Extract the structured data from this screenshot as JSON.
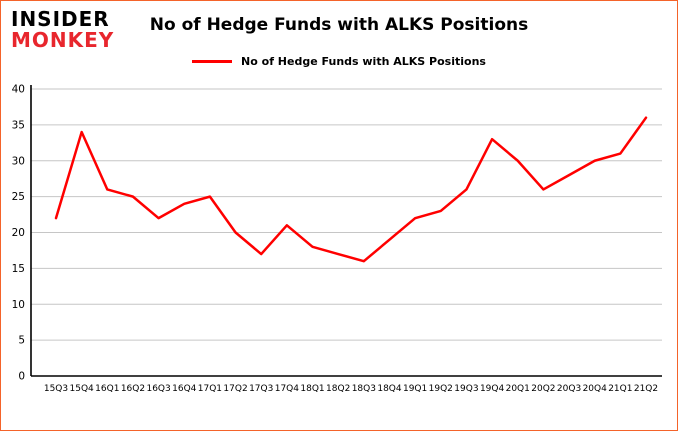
{
  "logo": {
    "line1": "INSIDER",
    "line2": "MONKEY"
  },
  "header": {
    "title": "No of Hedge Funds with ALKS Positions",
    "legend_label": "No of Hedge Funds with ALKS Positions"
  },
  "chart_data": {
    "type": "line",
    "title": "No of Hedge Funds with ALKS Positions",
    "legend": "No of Hedge Funds with ALKS Positions",
    "categories": [
      "15Q3",
      "15Q4",
      "16Q1",
      "16Q2",
      "16Q3",
      "16Q4",
      "17Q1",
      "17Q2",
      "17Q3",
      "17Q4",
      "18Q1",
      "18Q2",
      "18Q3",
      "18Q4",
      "19Q1",
      "19Q2",
      "19Q3",
      "19Q4",
      "20Q1",
      "20Q2",
      "20Q3",
      "20Q4",
      "21Q1",
      "21Q2"
    ],
    "values": [
      22,
      34,
      26,
      25,
      22,
      24,
      25,
      20,
      17,
      21,
      18,
      17,
      16,
      19,
      22,
      23,
      26,
      33,
      30,
      26,
      28,
      30,
      31,
      36
    ],
    "xlabel": "",
    "ylabel": "",
    "ylim": [
      0,
      40
    ],
    "ytick_step": 5,
    "grid": true,
    "legend_position": "top-center",
    "line_color": "#ff0000",
    "grid_color": "#c6c6c6",
    "axis_color": "#000000",
    "frame_border_color": "#f4632a"
  }
}
